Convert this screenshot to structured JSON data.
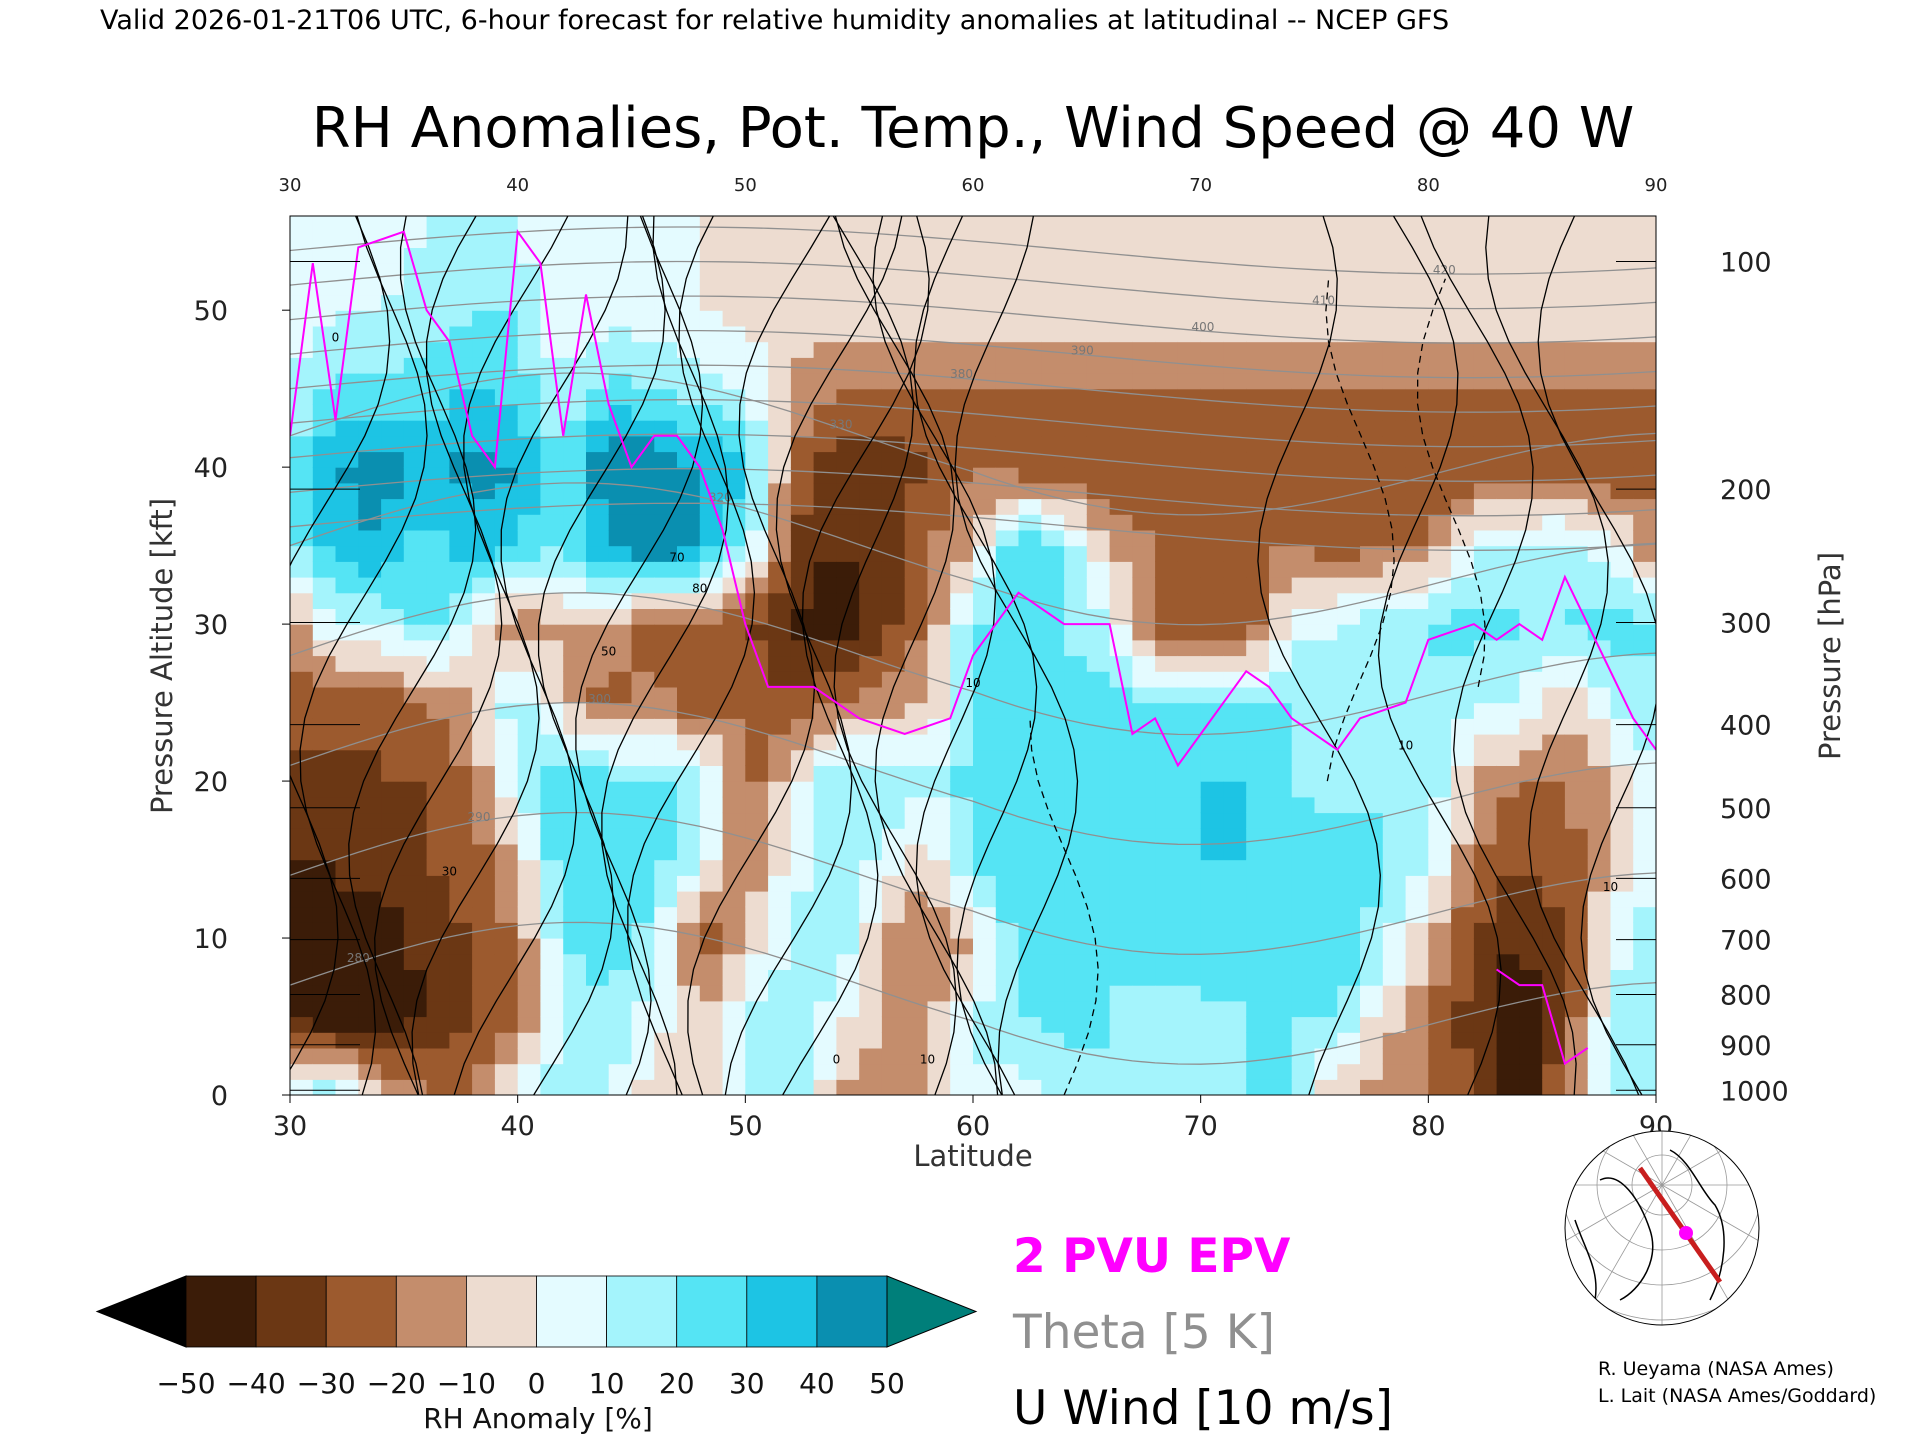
{
  "header": "Valid 2026-01-21T06 UTC, 6-hour forecast for relative humidity anomalies at latitudinal -- NCEP GFS",
  "chart_data": {
    "type": "heatmap",
    "title": "RH Anomalies, Pot. Temp., Wind Speed @ 40 W",
    "xlabel": "Latitude",
    "ylabel_left": "Pressure Altitude [kft]",
    "ylabel_right": "Pressure [hPa]",
    "xlim": [
      30,
      90
    ],
    "ylim": [
      0,
      56
    ],
    "x_ticks": [
      30,
      40,
      50,
      60,
      70,
      80,
      90
    ],
    "x_ticks_top": [
      30,
      40,
      50,
      60,
      70,
      80,
      90
    ],
    "y_ticks": [
      0,
      10,
      20,
      30,
      40,
      50
    ],
    "pressure_ticks": [
      {
        "hPa": 100,
        "kft": 53.1
      },
      {
        "hPa": 200,
        "kft": 38.6
      },
      {
        "hPa": 300,
        "kft": 30.1
      },
      {
        "hPa": 400,
        "kft": 23.6
      },
      {
        "hPa": 500,
        "kft": 18.3
      },
      {
        "hPa": 600,
        "kft": 13.8
      },
      {
        "hPa": 700,
        "kft": 9.9
      },
      {
        "hPa": 800,
        "kft": 6.4
      },
      {
        "hPa": 900,
        "kft": 3.2
      },
      {
        "hPa": 1000,
        "kft": 0.3
      }
    ],
    "grid_x": [
      30,
      32,
      34,
      36,
      38,
      40,
      42,
      44,
      46,
      48,
      50,
      52,
      54,
      56,
      58,
      60,
      62,
      64,
      66,
      68,
      70,
      72,
      74,
      76,
      78,
      80,
      82,
      84,
      86,
      88,
      90
    ],
    "grid_y": [
      0,
      5,
      10,
      15,
      20,
      25,
      30,
      35,
      40,
      45,
      50,
      55
    ],
    "rh_anomaly": [
      [
        10,
        20,
        -10,
        -20,
        -20,
        5,
        20,
        10,
        -5,
        -5,
        10,
        20,
        -10,
        -20,
        -10,
        10,
        5,
        10,
        20,
        15,
        10,
        20,
        20,
        -10,
        -15,
        -20,
        -30,
        -50,
        -20,
        10,
        20
      ],
      [
        -40,
        -50,
        -50,
        -40,
        -30,
        -20,
        10,
        20,
        5,
        -10,
        10,
        20,
        5,
        -10,
        -15,
        10,
        20,
        25,
        20,
        15,
        15,
        20,
        20,
        20,
        -5,
        -20,
        -35,
        -50,
        -30,
        10,
        20
      ],
      [
        -50,
        -40,
        -50,
        -35,
        -30,
        -20,
        20,
        25,
        15,
        -30,
        -10,
        10,
        20,
        -10,
        -20,
        -10,
        25,
        30,
        20,
        25,
        30,
        25,
        20,
        30,
        15,
        -10,
        -30,
        -40,
        -30,
        5,
        15
      ],
      [
        -40,
        -40,
        -35,
        -30,
        -25,
        -10,
        30,
        30,
        25,
        10,
        -20,
        5,
        15,
        10,
        -10,
        25,
        30,
        20,
        25,
        30,
        30,
        30,
        25,
        30,
        20,
        10,
        -20,
        -30,
        -25,
        -10,
        10
      ],
      [
        -35,
        -35,
        -30,
        -30,
        -20,
        10,
        30,
        25,
        20,
        20,
        -25,
        -5,
        20,
        20,
        10,
        25,
        30,
        20,
        25,
        25,
        30,
        30,
        20,
        10,
        20,
        20,
        -10,
        -20,
        -20,
        -10,
        10
      ],
      [
        -25,
        -25,
        -30,
        -20,
        -10,
        20,
        -10,
        -25,
        -15,
        -30,
        -20,
        -30,
        -20,
        -15,
        -10,
        20,
        30,
        25,
        25,
        20,
        20,
        20,
        20,
        20,
        10,
        20,
        10,
        10,
        -10,
        10,
        20
      ],
      [
        -15,
        10,
        10,
        25,
        5,
        -20,
        -10,
        -10,
        -30,
        -20,
        -30,
        -40,
        -50,
        -35,
        -20,
        20,
        25,
        20,
        10,
        -30,
        -25,
        -30,
        5,
        10,
        15,
        20,
        25,
        20,
        20,
        25,
        20
      ],
      [
        15,
        35,
        40,
        25,
        35,
        30,
        20,
        40,
        50,
        40,
        20,
        -30,
        -40,
        -35,
        -20,
        -10,
        30,
        20,
        -10,
        -20,
        -20,
        -20,
        -20,
        -25,
        -20,
        -20,
        10,
        10,
        15,
        5,
        -20
      ],
      [
        20,
        40,
        45,
        35,
        45,
        40,
        20,
        50,
        50,
        40,
        30,
        -20,
        -40,
        -40,
        -30,
        -20,
        -25,
        -30,
        -30,
        -30,
        -30,
        -30,
        -30,
        -30,
        -30,
        -30,
        -30,
        -30,
        -30,
        -30,
        -25
      ],
      [
        10,
        25,
        20,
        25,
        30,
        25,
        10,
        25,
        20,
        15,
        10,
        -10,
        -20,
        -20,
        -20,
        -20,
        -20,
        -20,
        -20,
        -20,
        -20,
        -20,
        -20,
        -20,
        -20,
        -20,
        -20,
        -20,
        -20,
        -20,
        -20
      ],
      [
        0,
        10,
        10,
        15,
        20,
        20,
        0,
        5,
        5,
        0,
        -5,
        -5,
        -5,
        -5,
        -5,
        -5,
        -5,
        -5,
        -5,
        -5,
        -5,
        -5,
        -5,
        -5,
        -5,
        -5,
        -5,
        -5,
        -5,
        -5,
        -5
      ],
      [
        0,
        5,
        5,
        10,
        10,
        10,
        0,
        0,
        0,
        0,
        -5,
        -5,
        -5,
        -5,
        -5,
        -5,
        -5,
        -5,
        -5,
        -5,
        -5,
        -5,
        -5,
        -5,
        -5,
        -5,
        -5,
        -5,
        -5,
        -5,
        -5
      ]
    ],
    "theta_k": [
      280,
      290,
      300,
      310,
      320,
      330,
      340,
      350,
      360,
      370,
      380,
      390,
      400,
      410,
      420
    ],
    "theta_labels": [
      "280",
      "290",
      "300",
      "320",
      "330",
      "380",
      "390",
      "400",
      "410",
      "420"
    ],
    "u_wind_labels": [
      "0",
      "10",
      "30",
      "50",
      "70",
      "80"
    ],
    "pv_2pvu_line": [
      [
        30,
        42
      ],
      [
        31,
        53
      ],
      [
        32,
        43
      ],
      [
        33,
        54
      ],
      [
        35,
        55
      ],
      [
        36,
        50
      ],
      [
        37,
        48
      ],
      [
        38,
        42
      ],
      [
        39,
        40
      ],
      [
        40,
        55
      ],
      [
        41,
        53
      ],
      [
        42,
        42
      ],
      [
        43,
        51
      ],
      [
        44,
        44
      ],
      [
        45,
        40
      ],
      [
        46,
        42
      ],
      [
        47,
        42
      ],
      [
        48,
        40
      ],
      [
        49,
        36
      ],
      [
        50,
        30
      ],
      [
        51,
        26
      ],
      [
        53,
        26
      ],
      [
        55,
        24
      ],
      [
        57,
        23
      ],
      [
        59,
        24
      ],
      [
        60,
        28
      ],
      [
        62,
        32
      ],
      [
        63,
        31
      ],
      [
        64,
        30
      ],
      [
        66,
        30
      ],
      [
        67,
        23
      ],
      [
        68,
        24
      ],
      [
        69,
        21
      ],
      [
        70,
        23
      ],
      [
        72,
        27
      ],
      [
        73,
        26
      ],
      [
        74,
        24
      ],
      [
        76,
        22
      ],
      [
        77,
        24
      ],
      [
        79,
        25
      ],
      [
        80,
        29
      ],
      [
        82,
        30
      ],
      [
        83,
        29
      ],
      [
        84,
        30
      ],
      [
        85,
        29
      ],
      [
        86,
        33
      ],
      [
        87,
        30
      ],
      [
        89,
        24
      ],
      [
        90,
        22
      ]
    ],
    "pv_2pvu_line_low": [
      [
        83,
        8
      ],
      [
        84,
        7
      ],
      [
        85,
        7
      ],
      [
        86,
        2
      ],
      [
        87,
        3
      ]
    ],
    "colorbar": {
      "label": "RH Anomaly [%]",
      "ticks": [
        -50,
        -40,
        -30,
        -20,
        -10,
        0,
        10,
        20,
        30,
        40,
        50
      ]
    }
  },
  "legend": {
    "pvu": "2 PVU EPV",
    "theta": "Theta [5 K]",
    "uwind": "U Wind [10 m/s]"
  },
  "colors": {
    "pvu": "#ff00ff",
    "theta": "#909090",
    "uwind": "#000000",
    "track": "#c81e1e",
    "scale": [
      "#000000",
      "#3b1c08",
      "#6b3714",
      "#9c5a2e",
      "#c48d6c",
      "#eddcd0",
      "#e4fbff",
      "#a4f4fc",
      "#55e4f4",
      "#1dc4e4",
      "#0a8fb0",
      "#007f7a"
    ]
  },
  "credits": [
    "R. Ueyama (NASA Ames)",
    "L. Lait (NASA Ames/Goddard)"
  ]
}
